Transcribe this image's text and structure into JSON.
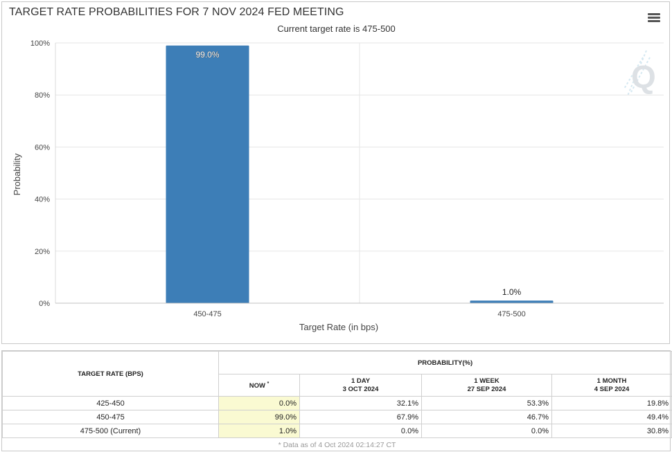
{
  "chart": {
    "title": "TARGET RATE PROBABILITIES FOR 7 NOV 2024 FED MEETING",
    "subtitle": "Current target rate is 475-500",
    "menu_icon": "hamburger-menu-icon",
    "watermark_icon": "q-logo-icon",
    "bar_color": "#3d7eb7"
  },
  "chart_data": {
    "type": "bar",
    "title": "TARGET RATE PROBABILITIES FOR 7 NOV 2024 FED MEETING",
    "subtitle": "Current target rate is 475-500",
    "categories": [
      "450-475",
      "475-500"
    ],
    "values": [
      99.0,
      1.0
    ],
    "data_labels": [
      "99.0%",
      "1.0%"
    ],
    "xlabel": "Target Rate (in bps)",
    "ylabel": "Probability",
    "ylim": [
      0,
      100
    ],
    "yticks": [
      0,
      20,
      40,
      60,
      80,
      100
    ],
    "ytick_labels": [
      "0%",
      "20%",
      "40%",
      "60%",
      "80%",
      "100%"
    ],
    "grid": true,
    "legend": "none"
  },
  "table": {
    "col_rate_header": "TARGET RATE (BPS)",
    "col_prob_header": "PROBABILITY(%)",
    "sub_headers": {
      "now": "NOW",
      "now_mark": "*",
      "day_line1": "1 DAY",
      "day_line2": "3 OCT 2024",
      "week_line1": "1 WEEK",
      "week_line2": "27 SEP 2024",
      "month_line1": "1 MONTH",
      "month_line2": "4 SEP 2024"
    },
    "rows": [
      {
        "rate": "425-450",
        "now": "0.0%",
        "day": "32.1%",
        "week": "53.3%",
        "month": "19.8%"
      },
      {
        "rate": "450-475",
        "now": "99.0%",
        "day": "67.9%",
        "week": "46.7%",
        "month": "49.4%"
      },
      {
        "rate": "475-500 (Current)",
        "now": "1.0%",
        "day": "0.0%",
        "week": "0.0%",
        "month": "30.8%"
      }
    ],
    "footnote": "* Data as of 4 Oct 2024 02:14:27 CT"
  }
}
